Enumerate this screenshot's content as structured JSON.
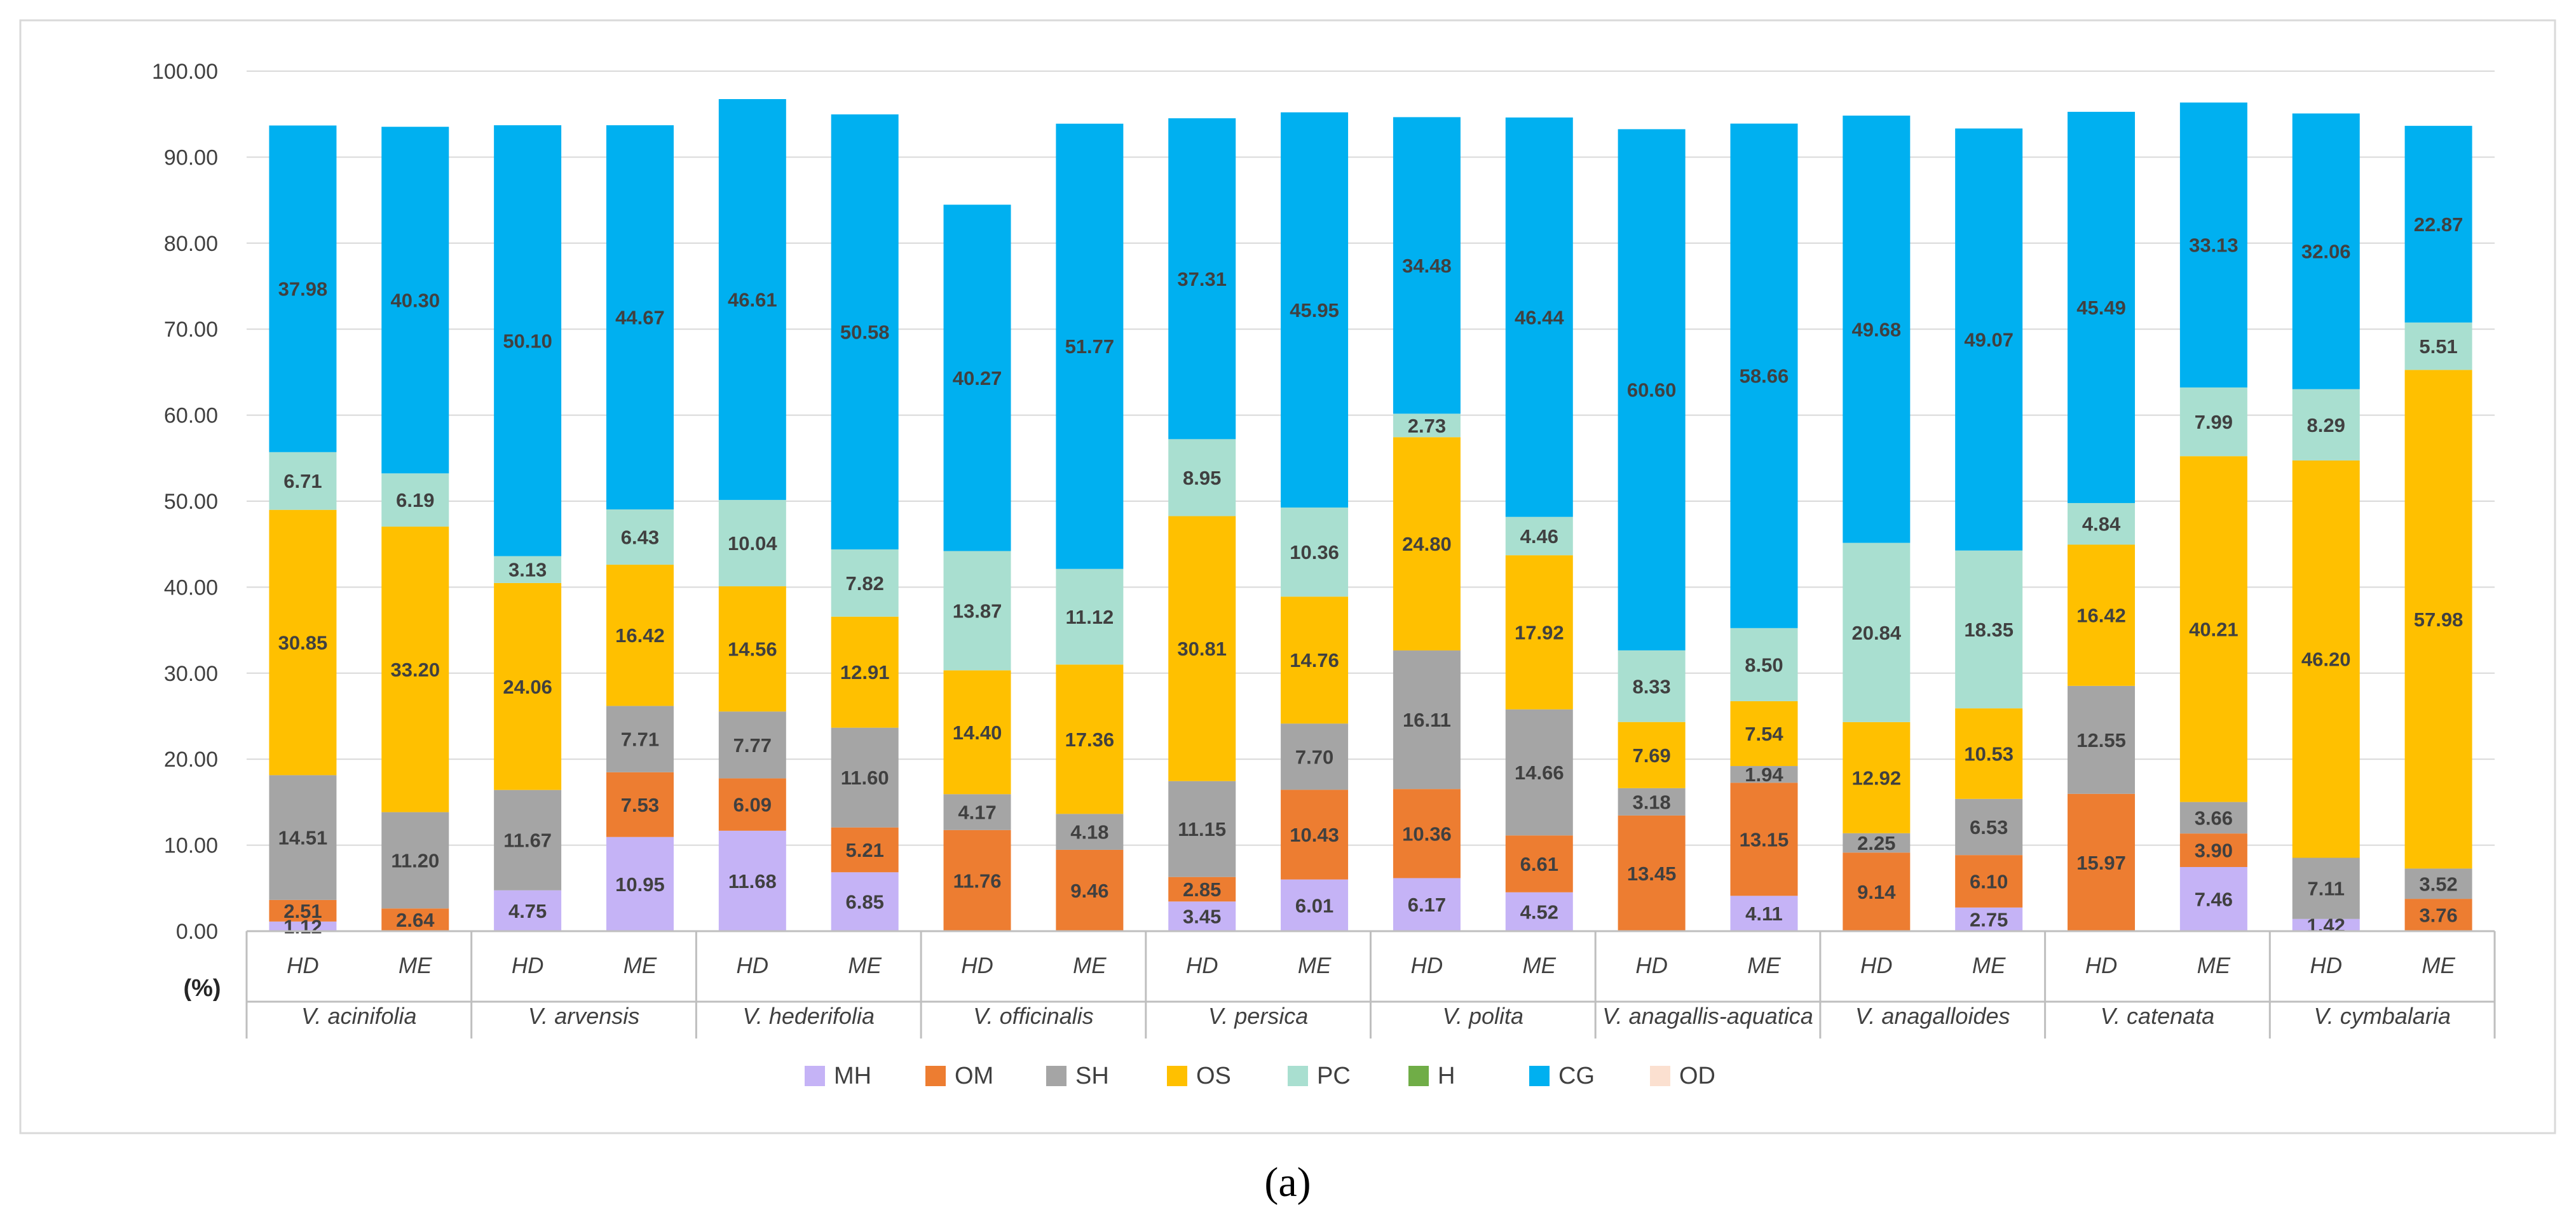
{
  "panel_label": "(a)",
  "chart_data": {
    "type": "bar",
    "stacked": true,
    "title": "",
    "xlabel": "",
    "ylabel": "(%)",
    "ylim": [
      0,
      100
    ],
    "yticks": [
      "0.00",
      "10.00",
      "20.00",
      "30.00",
      "40.00",
      "50.00",
      "60.00",
      "70.00",
      "80.00",
      "90.00",
      "100.00"
    ],
    "grid": true,
    "legend_position": "bottom",
    "groups": [
      "V. acinifolia",
      "V. arvensis",
      "V. hederifolia",
      "V. officinalis",
      "V. persica",
      "V. polita",
      "V. anagallis-aquatica",
      "V. anagalloides",
      "V. catenata",
      "V. cymbalaria"
    ],
    "categories": [
      "HD",
      "ME",
      "HD",
      "ME",
      "HD",
      "ME",
      "HD",
      "ME",
      "HD",
      "ME",
      "HD",
      "ME",
      "HD",
      "ME",
      "HD",
      "ME",
      "HD",
      "ME",
      "HD",
      "ME"
    ],
    "series": [
      {
        "name": "MH",
        "color": "#c5b3f6",
        "values": [
          1.12,
          0,
          4.75,
          10.95,
          11.68,
          6.85,
          0,
          0,
          3.45,
          6.01,
          6.17,
          4.52,
          0,
          4.11,
          0,
          2.75,
          0,
          7.46,
          1.42,
          0
        ]
      },
      {
        "name": "OM",
        "color": "#ed7d31",
        "values": [
          2.51,
          2.64,
          0,
          7.53,
          6.09,
          5.21,
          11.76,
          9.46,
          2.85,
          10.43,
          10.36,
          6.61,
          13.45,
          13.15,
          9.14,
          6.1,
          15.97,
          3.9,
          0,
          3.76
        ]
      },
      {
        "name": "SH",
        "color": "#a5a5a5",
        "values": [
          14.51,
          11.2,
          11.67,
          7.71,
          7.77,
          11.6,
          4.17,
          4.18,
          11.15,
          7.7,
          16.11,
          14.66,
          3.18,
          1.94,
          2.25,
          6.53,
          12.55,
          3.66,
          7.11,
          3.52
        ]
      },
      {
        "name": "OS",
        "color": "#ffc000",
        "values": [
          30.85,
          33.2,
          24.06,
          16.42,
          14.56,
          12.91,
          14.4,
          17.36,
          30.81,
          14.76,
          24.8,
          17.92,
          7.69,
          7.54,
          12.92,
          10.53,
          16.42,
          40.21,
          46.2,
          57.98
        ]
      },
      {
        "name": "PC",
        "color": "#a9dfd0",
        "values": [
          6.71,
          6.19,
          3.13,
          6.43,
          10.04,
          7.82,
          13.87,
          11.12,
          8.95,
          10.36,
          2.73,
          4.46,
          8.33,
          8.5,
          20.84,
          18.35,
          4.84,
          7.99,
          8.29,
          5.51
        ]
      },
      {
        "name": "H",
        "color": "#70ad47",
        "values": [
          0,
          0,
          0,
          0,
          0,
          0,
          0,
          0,
          0,
          0,
          0,
          0,
          0,
          0,
          0,
          0,
          0,
          0,
          0,
          0
        ]
      },
      {
        "name": "CG",
        "color": "#00b0f0",
        "values": [
          37.98,
          40.3,
          50.1,
          44.67,
          46.61,
          50.58,
          40.27,
          51.77,
          37.31,
          45.95,
          34.48,
          46.44,
          60.6,
          58.66,
          49.68,
          49.07,
          45.49,
          33.13,
          32.06,
          22.87
        ]
      },
      {
        "name": "OD",
        "color": "#fbe0d0",
        "values": [
          0,
          0,
          0,
          0,
          0,
          0,
          0,
          0,
          0,
          0,
          0,
          0,
          0,
          0,
          0,
          0,
          0,
          0,
          0,
          0
        ]
      }
    ],
    "data_labels": [
      {
        "bar": 0,
        "series": "MH",
        "text": "1.12"
      },
      {
        "bar": 0,
        "series": "OM",
        "text": "2.51"
      },
      {
        "bar": 0,
        "series": "SH",
        "text": "14.51"
      },
      {
        "bar": 0,
        "series": "OS",
        "text": "30.85"
      },
      {
        "bar": 0,
        "series": "PC",
        "text": "6.71"
      },
      {
        "bar": 0,
        "series": "CG",
        "text": "37.98"
      },
      {
        "bar": 1,
        "series": "OM",
        "text": "2.64"
      },
      {
        "bar": 1,
        "series": "SH",
        "text": "11.20"
      },
      {
        "bar": 1,
        "series": "OS",
        "text": "33.20"
      },
      {
        "bar": 1,
        "series": "PC",
        "text": "6.19"
      },
      {
        "bar": 1,
        "series": "CG",
        "text": "40.30"
      },
      {
        "bar": 2,
        "series": "MH",
        "text": "4.75"
      },
      {
        "bar": 2,
        "series": "SH",
        "text": "11.67"
      },
      {
        "bar": 2,
        "series": "OS",
        "text": "24.06"
      },
      {
        "bar": 2,
        "series": "PC",
        "text": "3.13"
      },
      {
        "bar": 2,
        "series": "CG",
        "text": "50.10"
      },
      {
        "bar": 3,
        "series": "MH",
        "text": "10.95"
      },
      {
        "bar": 3,
        "series": "OM",
        "text": "7.53"
      },
      {
        "bar": 3,
        "series": "SH",
        "text": "7.71"
      },
      {
        "bar": 3,
        "series": "OS",
        "text": "16.42"
      },
      {
        "bar": 3,
        "series": "PC",
        "text": "6.43"
      },
      {
        "bar": 3,
        "series": "CG",
        "text": "44.67"
      },
      {
        "bar": 4,
        "series": "MH",
        "text": "11.68"
      },
      {
        "bar": 4,
        "series": "OM",
        "text": "6.09"
      },
      {
        "bar": 4,
        "series": "SH",
        "text": "7.77"
      },
      {
        "bar": 4,
        "series": "OS",
        "text": "14.56"
      },
      {
        "bar": 4,
        "series": "PC",
        "text": "10.04"
      },
      {
        "bar": 4,
        "series": "CG",
        "text": "46.61"
      },
      {
        "bar": 5,
        "series": "MH",
        "text": "6.85"
      },
      {
        "bar": 5,
        "series": "OM",
        "text": "5.21"
      },
      {
        "bar": 5,
        "series": "SH",
        "text": "11.60"
      },
      {
        "bar": 5,
        "series": "OS",
        "text": "12.91"
      },
      {
        "bar": 5,
        "series": "PC",
        "text": "7.82"
      },
      {
        "bar": 5,
        "series": "CG",
        "text": "50.58"
      },
      {
        "bar": 6,
        "series": "OM",
        "text": "11.76"
      },
      {
        "bar": 6,
        "series": "SH",
        "text": "4.17"
      },
      {
        "bar": 6,
        "series": "OS",
        "text": "14.40"
      },
      {
        "bar": 6,
        "series": "PC",
        "text": "13.87"
      },
      {
        "bar": 6,
        "series": "CG",
        "text": "40.27"
      },
      {
        "bar": 7,
        "series": "OM",
        "text": "9.46"
      },
      {
        "bar": 7,
        "series": "SH",
        "text": "4.18"
      },
      {
        "bar": 7,
        "series": "OS",
        "text": "17.36"
      },
      {
        "bar": 7,
        "series": "PC",
        "text": "11.12"
      },
      {
        "bar": 7,
        "series": "CG",
        "text": "51.77"
      },
      {
        "bar": 8,
        "series": "MH",
        "text": "3.45"
      },
      {
        "bar": 8,
        "series": "OM",
        "text": "2.85"
      },
      {
        "bar": 8,
        "series": "SH",
        "text": "11.15"
      },
      {
        "bar": 8,
        "series": "OS",
        "text": "30.81"
      },
      {
        "bar": 8,
        "series": "PC",
        "text": "8.95"
      },
      {
        "bar": 8,
        "series": "CG",
        "text": "37.31"
      },
      {
        "bar": 9,
        "series": "MH",
        "text": "6.01"
      },
      {
        "bar": 9,
        "series": "OM",
        "text": "10.43"
      },
      {
        "bar": 9,
        "series": "SH",
        "text": "7.70"
      },
      {
        "bar": 9,
        "series": "OS",
        "text": "14.76"
      },
      {
        "bar": 9,
        "series": "PC",
        "text": "10.36"
      },
      {
        "bar": 9,
        "series": "CG",
        "text": "45.95"
      },
      {
        "bar": 10,
        "series": "MH",
        "text": "6.17"
      },
      {
        "bar": 10,
        "series": "OM",
        "text": "10.36"
      },
      {
        "bar": 10,
        "series": "SH",
        "text": "16.11"
      },
      {
        "bar": 10,
        "series": "OS",
        "text": "24.80"
      },
      {
        "bar": 10,
        "series": "PC",
        "text": "2.73"
      },
      {
        "bar": 10,
        "series": "CG",
        "text": "34.48"
      },
      {
        "bar": 11,
        "series": "MH",
        "text": "4.52"
      },
      {
        "bar": 11,
        "series": "OM",
        "text": "6.61"
      },
      {
        "bar": 11,
        "series": "SH",
        "text": "14.66"
      },
      {
        "bar": 11,
        "series": "OS",
        "text": "17.92"
      },
      {
        "bar": 11,
        "series": "PC",
        "text": "4.46"
      },
      {
        "bar": 11,
        "series": "CG",
        "text": "46.44"
      },
      {
        "bar": 12,
        "series": "OM",
        "text": "13.45"
      },
      {
        "bar": 12,
        "series": "SH",
        "text": "3.18"
      },
      {
        "bar": 12,
        "series": "OS",
        "text": "7.69"
      },
      {
        "bar": 12,
        "series": "PC",
        "text": "8.33"
      },
      {
        "bar": 12,
        "series": "CG",
        "text": "60.60"
      },
      {
        "bar": 13,
        "series": "MH",
        "text": "4.11"
      },
      {
        "bar": 13,
        "series": "OM",
        "text": "13.15"
      },
      {
        "bar": 13,
        "series": "SH",
        "text": "1.94"
      },
      {
        "bar": 13,
        "series": "OS",
        "text": "7.54"
      },
      {
        "bar": 13,
        "series": "PC",
        "text": "8.50"
      },
      {
        "bar": 13,
        "series": "CG",
        "text": "58.66"
      },
      {
        "bar": 14,
        "series": "OM",
        "text": "9.14"
      },
      {
        "bar": 14,
        "series": "SH",
        "text": "2.25"
      },
      {
        "bar": 14,
        "series": "OS",
        "text": "12.92"
      },
      {
        "bar": 14,
        "series": "PC",
        "text": "20.84"
      },
      {
        "bar": 14,
        "series": "CG",
        "text": "49.68"
      },
      {
        "bar": 15,
        "series": "MH",
        "text": "2.75"
      },
      {
        "bar": 15,
        "series": "OM",
        "text": "6.10"
      },
      {
        "bar": 15,
        "series": "SH",
        "text": "6.53"
      },
      {
        "bar": 15,
        "series": "OS",
        "text": "10.53"
      },
      {
        "bar": 15,
        "series": "PC",
        "text": "18.35"
      },
      {
        "bar": 15,
        "series": "CG",
        "text": "49.07"
      },
      {
        "bar": 16,
        "series": "OM",
        "text": "15.97"
      },
      {
        "bar": 16,
        "series": "SH",
        "text": "12.55"
      },
      {
        "bar": 16,
        "series": "OS",
        "text": "16.42"
      },
      {
        "bar": 16,
        "series": "PC",
        "text": "4.84"
      },
      {
        "bar": 16,
        "series": "CG",
        "text": "45.49"
      },
      {
        "bar": 17,
        "series": "MH",
        "text": "7.46"
      },
      {
        "bar": 17,
        "series": "OM",
        "text": "3.90"
      },
      {
        "bar": 17,
        "series": "SH",
        "text": "3.66"
      },
      {
        "bar": 17,
        "series": "OS",
        "text": "40.21"
      },
      {
        "bar": 17,
        "series": "PC",
        "text": "7.99"
      },
      {
        "bar": 17,
        "series": "CG",
        "text": "33.13"
      },
      {
        "bar": 18,
        "series": "MH",
        "text": "1.42"
      },
      {
        "bar": 18,
        "series": "SH",
        "text": "7.11"
      },
      {
        "bar": 18,
        "series": "OS",
        "text": "46.20"
      },
      {
        "bar": 18,
        "series": "PC",
        "text": "8.29"
      },
      {
        "bar": 18,
        "series": "CG",
        "text": "32.06"
      },
      {
        "bar": 19,
        "series": "OM",
        "text": "3.76"
      },
      {
        "bar": 19,
        "series": "SH",
        "text": "3.52"
      },
      {
        "bar": 19,
        "series": "OS",
        "text": "57.98"
      },
      {
        "bar": 19,
        "series": "PC",
        "text": "5.51"
      },
      {
        "bar": 19,
        "series": "CG",
        "text": "22.87"
      }
    ]
  }
}
